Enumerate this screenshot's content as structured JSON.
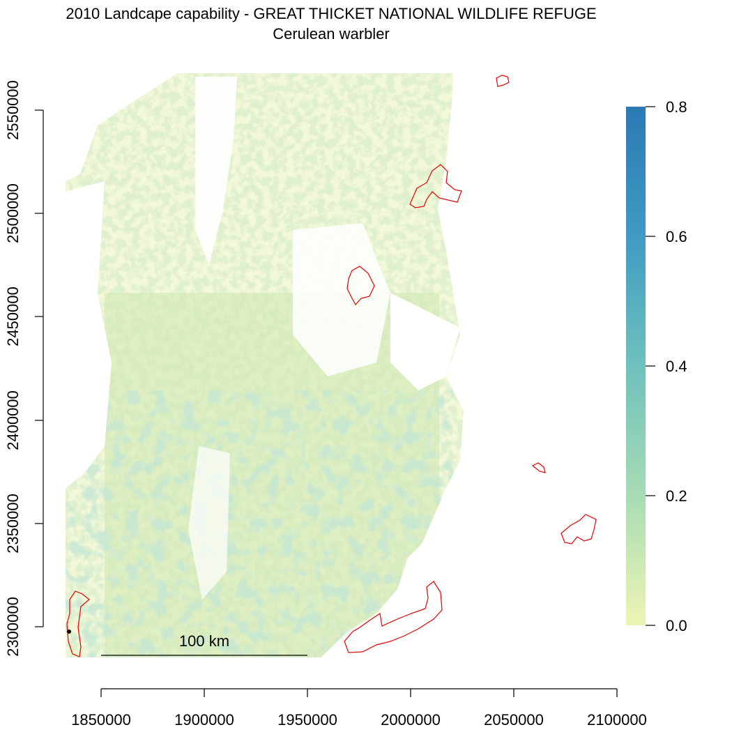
{
  "title": {
    "line1": "2010 Landcape capability - GREAT THICKET NATIONAL WILDLIFE REFUGE",
    "line2": "Cerulean warbler"
  },
  "x_axis": {
    "ticks": [
      "1850000",
      "1900000",
      "1950000",
      "2000000",
      "2050000",
      "2100000"
    ]
  },
  "y_axis": {
    "ticks": [
      "2300000",
      "2350000",
      "2400000",
      "2450000",
      "2500000",
      "2550000"
    ]
  },
  "legend": {
    "min": 0.0,
    "max": 0.8,
    "ticks": [
      "0.0",
      "0.2",
      "0.4",
      "0.6",
      "0.8"
    ],
    "colors": [
      "#eef5b4",
      "#a7dcb4",
      "#6fc1bd",
      "#3f9bc2",
      "#2b79b4"
    ]
  },
  "scale_bar": {
    "label": "100 km"
  },
  "colors": {
    "refuge_outline": "#e60000",
    "raster_low": "#eef5b4",
    "raster_mid": "#c5e2a6",
    "raster_high": "#8fccb0"
  }
}
